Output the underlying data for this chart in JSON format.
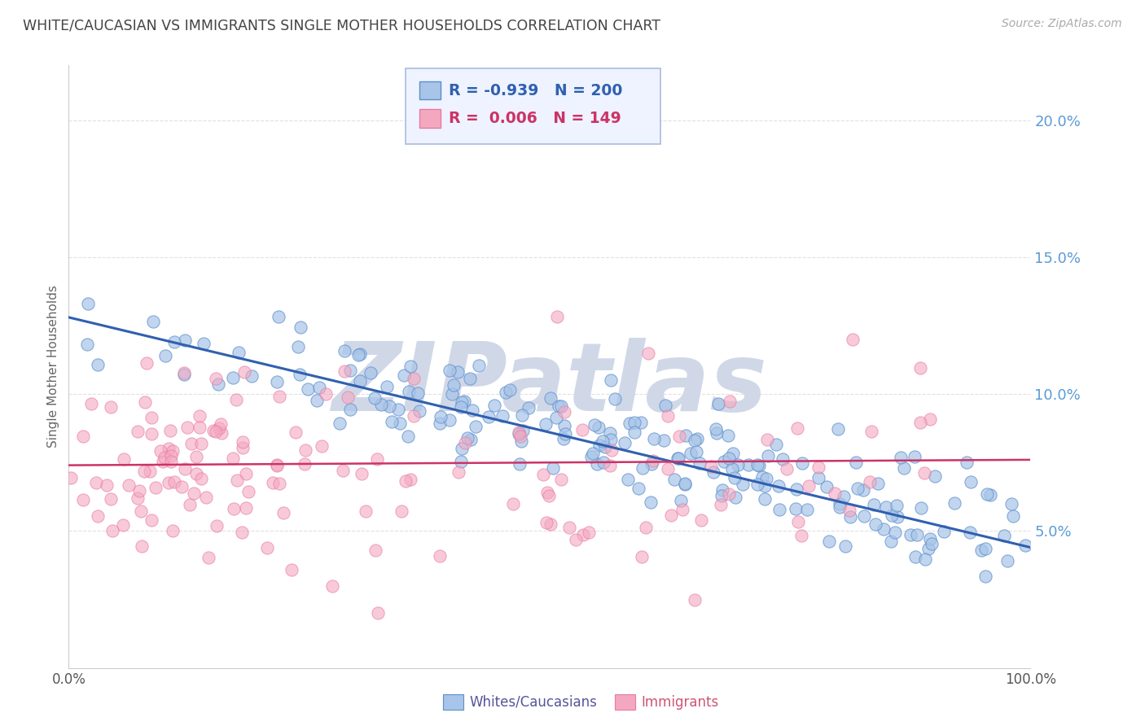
{
  "title": "WHITE/CAUCASIAN VS IMMIGRANTS SINGLE MOTHER HOUSEHOLDS CORRELATION CHART",
  "source": "Source: ZipAtlas.com",
  "ylabel": "Single Mother Households",
  "blue_label": "Whites/Caucasians",
  "pink_label": "Immigrants",
  "blue_R": -0.939,
  "blue_N": 200,
  "pink_R": 0.006,
  "pink_N": 149,
  "blue_color": "#A8C4E8",
  "pink_color": "#F4A8C0",
  "blue_edge_color": "#5B8FCC",
  "pink_edge_color": "#E87AA0",
  "blue_line_color": "#3060B0",
  "pink_line_color": "#CC3366",
  "ytick_color": "#5B9BD5",
  "watermark": "ZIPatlas",
  "watermark_color": "#D0D8E8",
  "xlim": [
    0.0,
    1.0
  ],
  "ylim": [
    0.0,
    0.22
  ],
  "yticks": [
    0.05,
    0.1,
    0.15,
    0.2
  ],
  "ytick_labels": [
    "5.0%",
    "10.0%",
    "15.0%",
    "20.0%"
  ],
  "xtick_labels": [
    "0.0%",
    "100.0%"
  ],
  "blue_seed": 42,
  "pink_seed": 123,
  "background_color": "#FFFFFF",
  "legend_box_color": "#EEF3FF",
  "legend_border_color": "#AABBDD",
  "blue_line_start": 0.128,
  "blue_line_end": 0.044,
  "pink_line_start": 0.074,
  "pink_line_end": 0.076,
  "grid_color": "#E0E0E0",
  "spine_color": "#CCCCCC",
  "text_color": "#666666",
  "title_color": "#444444"
}
